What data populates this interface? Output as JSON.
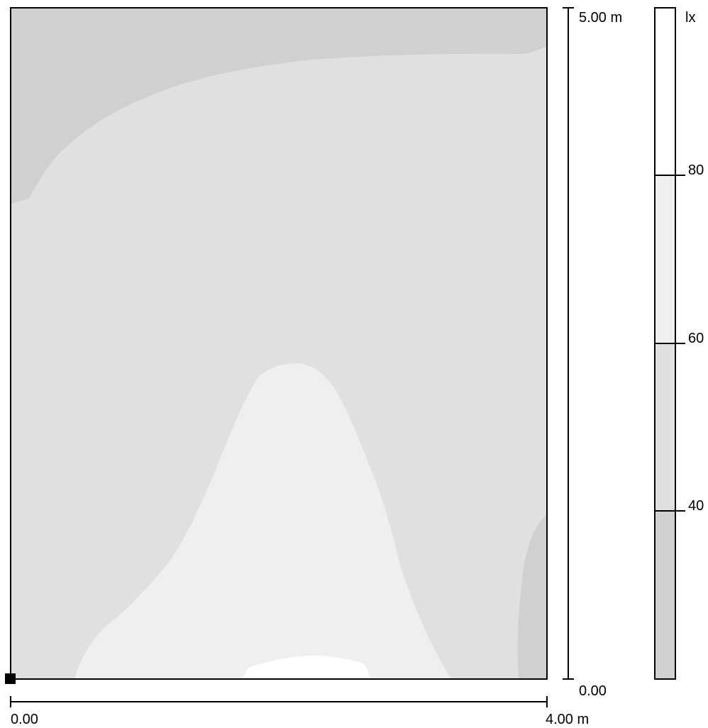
{
  "plot": {
    "level_colors": [
      "#d0d0d0",
      "#e0e0e0",
      "#efefef",
      "#ffffff"
    ],
    "border_color": "#000000"
  },
  "y_scale": {
    "top_label": "5.00 m",
    "bottom_label": "0.00"
  },
  "x_scale": {
    "left_label": "0.00",
    "right_label": "4.00 m"
  },
  "legend": {
    "unit_label": "lx",
    "thresholds": [
      {
        "value": 80,
        "label": "80"
      },
      {
        "value": 60,
        "label": "60"
      },
      {
        "value": 40,
        "label": "40"
      }
    ],
    "colors": [
      "#ffffff",
      "#efefef",
      "#e0e0e0",
      "#d0d0d0"
    ]
  }
}
